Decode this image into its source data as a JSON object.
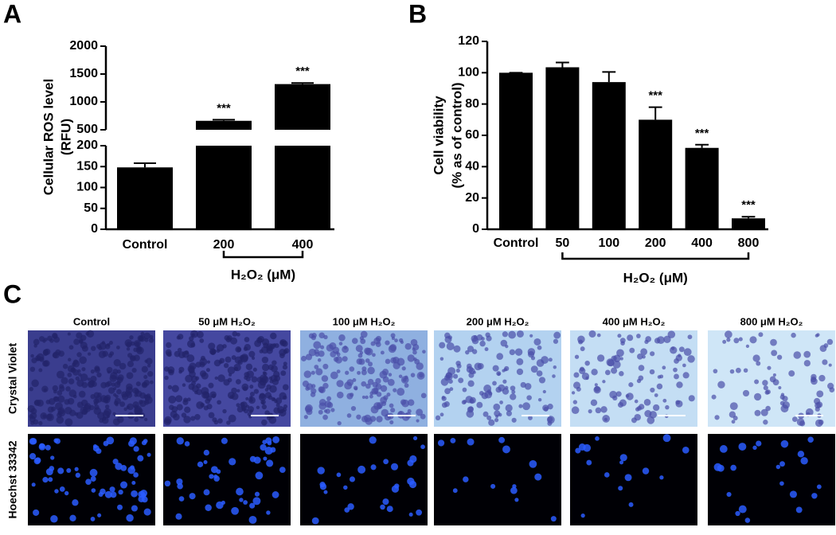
{
  "chart_data": [
    {
      "type": "bar",
      "panel_label": "A",
      "y_label": [
        "Cellular ROS level",
        "(RFU)"
      ],
      "categories": [
        "Control",
        "200",
        "400"
      ],
      "values": [
        148,
        660,
        1320
      ],
      "errors": [
        10,
        20,
        20
      ],
      "significance": [
        null,
        "***",
        "***"
      ],
      "x_group_label": "H₂O₂ (μM)",
      "color": "#000000",
      "ylim": [
        0,
        2000
      ],
      "axis_break": [
        200,
        500
      ],
      "yticks": [
        0,
        50,
        100,
        150,
        200,
        500,
        1000,
        1500,
        2000
      ]
    },
    {
      "type": "bar",
      "panel_label": "B",
      "y_label": [
        "Cell viability",
        "(% as of control)"
      ],
      "categories": [
        "Control",
        "50",
        "100",
        "200",
        "400",
        "800"
      ],
      "values": [
        100,
        103.5,
        94,
        70,
        52,
        7
      ],
      "errors": [
        0,
        3,
        6.5,
        8,
        2,
        1
      ],
      "significance": [
        null,
        null,
        null,
        "***",
        "***",
        "***"
      ],
      "x_group_label": "H₂O₂ (μM)",
      "color": "#000000",
      "ylim": [
        0,
        120
      ],
      "yticks": [
        0,
        20,
        40,
        60,
        80,
        100,
        120
      ]
    }
  ],
  "image_panel": {
    "panel_label": "C",
    "columns": [
      "Control",
      "50 μM H₂O₂",
      "100 μM H₂O₂",
      "200 μM H₂O₂",
      "400 μM H₂O₂",
      "800 μM H₂O₂"
    ],
    "rows": [
      "Crystal Violet",
      "Hoechst 33342"
    ]
  }
}
